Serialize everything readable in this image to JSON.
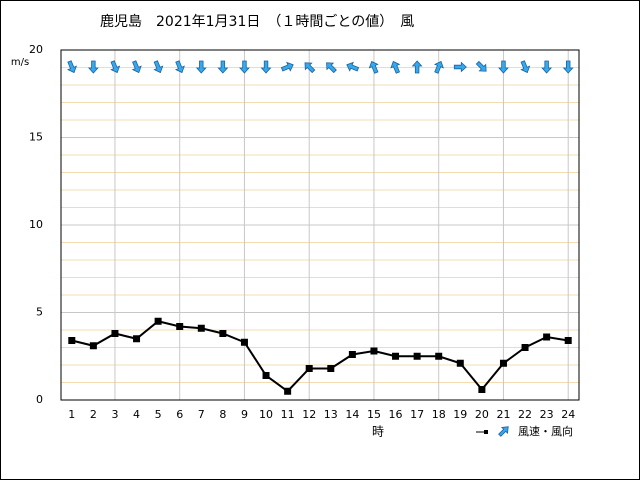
{
  "chart_data": {
    "type": "wind",
    "title": "鹿児島　2021年1月31日　（１時間ごとの値）　風",
    "y_label": "m/s",
    "x_label": "時",
    "x": [
      1,
      2,
      3,
      4,
      5,
      6,
      7,
      8,
      9,
      10,
      11,
      12,
      13,
      14,
      15,
      16,
      17,
      18,
      19,
      20,
      21,
      22,
      23,
      24
    ],
    "xlim": [
      0.5,
      24.5
    ],
    "series": [
      {
        "name": "風速・風向",
        "color": "#000000",
        "values": [
          3.4,
          3.1,
          3.8,
          3.5,
          4.5,
          4.2,
          4.1,
          3.8,
          3.3,
          1.4,
          0.5,
          1.8,
          1.8,
          2.6,
          2.8,
          2.5,
          2.5,
          2.5,
          2.1,
          0.6,
          2.1,
          3.0,
          3.6,
          3.4
        ],
        "direction_deg": [
          337.5,
          0,
          337.5,
          337.5,
          337.5,
          337.5,
          0,
          0,
          0,
          0,
          247.5,
          135,
          135,
          112.5,
          157.5,
          157.5,
          180,
          202.5,
          270,
          315,
          0,
          337.5,
          0,
          0
        ]
      }
    ],
    "arrow_color": "#33aaee",
    "ylim": [
      0,
      20
    ],
    "yticks": [
      0,
      5,
      10,
      15,
      20
    ],
    "minor_yticks": [
      1,
      2,
      3,
      4,
      6,
      7,
      8,
      9,
      11,
      12,
      13,
      14,
      16,
      17,
      18,
      19
    ],
    "grid": true
  }
}
